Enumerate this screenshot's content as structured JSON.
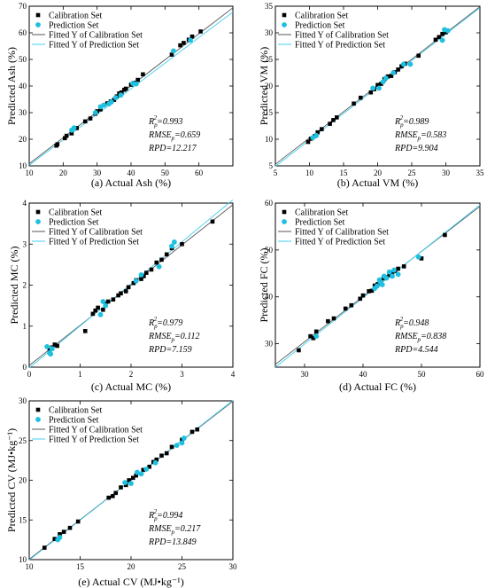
{
  "colors": {
    "calibration": "#000000",
    "prediction": "#1ec0e0",
    "fit_calibration": "#555555",
    "fit_prediction": "#40d0f0"
  },
  "legend": {
    "calibration": "Calibration Set",
    "prediction": "Prediction Set",
    "fit_calibration": "Fitted Y of Calibration Set",
    "fit_prediction": "Fitted Y of Prediction Set"
  },
  "chart_data": [
    {
      "type": "scatter",
      "caption": "(a) Actual Ash (%)",
      "ylabel": "Predicted  Ash (%)",
      "xlim": [
        10,
        70
      ],
      "ylim": [
        10,
        70
      ],
      "xticks": [
        10,
        20,
        30,
        40,
        50,
        60
      ],
      "yticks": [
        10,
        20,
        30,
        40,
        50,
        60,
        70
      ],
      "stats": {
        "r2": "0.993",
        "rmse": "0.659",
        "rpd": "RPD=12.217"
      },
      "fit_calibration": [
        [
          10,
          10.8
        ],
        [
          70,
          69.4
        ]
      ],
      "fit_prediction": [
        [
          10,
          10.2
        ],
        [
          70,
          67.8
        ]
      ],
      "calibration": [
        [
          18,
          17.6
        ],
        [
          18.3,
          18.1
        ],
        [
          20.5,
          20.4
        ],
        [
          21,
          21.3
        ],
        [
          22.5,
          22.2
        ],
        [
          24,
          24.2
        ],
        [
          26.5,
          26.7
        ],
        [
          28,
          27.8
        ],
        [
          29.5,
          29.6
        ],
        [
          30,
          30.5
        ],
        [
          31,
          31.2
        ],
        [
          32,
          32.8
        ],
        [
          33,
          33.5
        ],
        [
          34,
          34.2
        ],
        [
          35,
          34.8
        ],
        [
          35.8,
          36.1
        ],
        [
          36.5,
          37.2
        ],
        [
          37.2,
          37.6
        ],
        [
          38,
          38.6
        ],
        [
          38.5,
          39
        ],
        [
          40,
          40.5
        ],
        [
          41,
          41.2
        ],
        [
          42,
          42.3
        ],
        [
          43.5,
          44.4
        ],
        [
          52,
          51.8
        ],
        [
          54.5,
          55.3
        ],
        [
          55.5,
          56.2
        ],
        [
          57,
          57.4
        ],
        [
          58,
          58.6
        ],
        [
          60.5,
          60.5
        ]
      ],
      "prediction": [
        [
          22.5,
          23.4
        ],
        [
          23.2,
          24.3
        ],
        [
          29.5,
          30
        ],
        [
          31,
          32.2
        ],
        [
          32,
          32.8
        ],
        [
          33.5,
          33.3
        ],
        [
          34.2,
          34
        ],
        [
          35.5,
          35.6
        ],
        [
          37,
          36.6
        ],
        [
          40.5,
          41
        ],
        [
          41.5,
          40.8
        ],
        [
          52.5,
          53.2
        ],
        [
          57.5,
          57.2
        ]
      ]
    },
    {
      "type": "scatter",
      "caption": "(b) Actual VM (%)",
      "ylabel": "Predicted  VM (%)",
      "xlim": [
        5,
        35
      ],
      "ylim": [
        5,
        35
      ],
      "xticks": [
        5,
        10,
        15,
        20,
        25,
        30,
        35
      ],
      "yticks": [
        5,
        10,
        15,
        20,
        25,
        30,
        35
      ],
      "stats": {
        "r2": "0.989",
        "rmse": "0.583",
        "rpd": "RPD=9.904"
      },
      "fit_calibration": [
        [
          5,
          5.3
        ],
        [
          35,
          34.9
        ]
      ],
      "fit_prediction": [
        [
          5,
          4.9
        ],
        [
          35,
          34.7
        ]
      ],
      "calibration": [
        [
          9.8,
          9.5
        ],
        [
          10.2,
          10.1
        ],
        [
          10.8,
          10.6
        ],
        [
          11.2,
          11.3
        ],
        [
          11.8,
          11.9
        ],
        [
          13,
          12.9
        ],
        [
          13.5,
          13.6
        ],
        [
          14,
          14.1
        ],
        [
          16.5,
          16.7
        ],
        [
          17.5,
          17.8
        ],
        [
          19,
          18.8
        ],
        [
          19.5,
          19.4
        ],
        [
          20,
          20.2
        ],
        [
          20.5,
          20.4
        ],
        [
          21,
          21.3
        ],
        [
          21.5,
          21.8
        ],
        [
          22,
          21.9
        ],
        [
          22.5,
          22.6
        ],
        [
          23,
          23.1
        ],
        [
          23.5,
          23.7
        ],
        [
          24,
          24.2
        ],
        [
          26,
          25.7
        ],
        [
          28.5,
          28.7
        ],
        [
          29,
          29.2
        ],
        [
          29.5,
          29.8
        ],
        [
          30,
          30.1
        ]
      ],
      "prediction": [
        [
          10.5,
          10.3
        ],
        [
          11,
          10.7
        ],
        [
          19.3,
          19.6
        ],
        [
          20.2,
          19.6
        ],
        [
          20.8,
          20.8
        ],
        [
          21.2,
          21.5
        ],
        [
          22.3,
          22.5
        ],
        [
          23.8,
          24.1
        ],
        [
          24.8,
          24.1
        ],
        [
          29.5,
          28.6
        ],
        [
          29.8,
          30.6
        ],
        [
          30.3,
          30.4
        ]
      ]
    },
    {
      "type": "scatter",
      "caption": "(c) Actual MC (%)",
      "ylabel": "Predicted  MC (%)",
      "xlim": [
        0,
        4
      ],
      "ylim": [
        0,
        4
      ],
      "xticks": [
        0,
        1,
        2,
        3,
        4
      ],
      "yticks": [
        0,
        1,
        2,
        3,
        4
      ],
      "stats": {
        "r2": "0.979",
        "rmse": "0.112",
        "rpd": "RPD=7.159"
      },
      "fit_calibration": [
        [
          0,
          0.04
        ],
        [
          4,
          3.96
        ]
      ],
      "fit_prediction": [
        [
          0,
          -0.02
        ],
        [
          4,
          4.08
        ]
      ],
      "calibration": [
        [
          0.4,
          0.42
        ],
        [
          0.45,
          0.48
        ],
        [
          0.5,
          0.55
        ],
        [
          0.55,
          0.52
        ],
        [
          1.1,
          0.88
        ],
        [
          1.25,
          1.3
        ],
        [
          1.3,
          1.38
        ],
        [
          1.35,
          1.45
        ],
        [
          1.45,
          1.4
        ],
        [
          1.5,
          1.55
        ],
        [
          1.55,
          1.6
        ],
        [
          1.65,
          1.65
        ],
        [
          1.75,
          1.75
        ],
        [
          1.8,
          1.8
        ],
        [
          1.9,
          1.85
        ],
        [
          1.95,
          1.95
        ],
        [
          2.05,
          2.05
        ],
        [
          2.1,
          2.12
        ],
        [
          2.2,
          2.15
        ],
        [
          2.25,
          2.22
        ],
        [
          2.3,
          2.3
        ],
        [
          2.4,
          2.38
        ],
        [
          2.5,
          2.55
        ],
        [
          2.6,
          2.62
        ],
        [
          2.7,
          2.75
        ],
        [
          2.8,
          2.9
        ],
        [
          3.0,
          3.0
        ],
        [
          3.6,
          3.55
        ]
      ],
      "prediction": [
        [
          0.35,
          0.5
        ],
        [
          0.4,
          0.35
        ],
        [
          0.42,
          0.32
        ],
        [
          0.45,
          0.45
        ],
        [
          1.4,
          1.28
        ],
        [
          1.45,
          1.6
        ],
        [
          1.5,
          1.5
        ],
        [
          2.1,
          2.1
        ],
        [
          2.2,
          2.25
        ],
        [
          2.55,
          2.45
        ],
        [
          2.8,
          2.95
        ],
        [
          2.85,
          3.05
        ]
      ]
    },
    {
      "type": "scatter",
      "caption": "(d) Actual FC (%)",
      "ylabel": "Predicted  FC (%)",
      "xlim": [
        25,
        60
      ],
      "ylim": [
        25,
        60
      ],
      "xticks": [
        30,
        40,
        50,
        60
      ],
      "yticks": [
        30,
        40,
        50,
        60
      ],
      "stats": {
        "r2": "0.948",
        "rmse": "0.838",
        "rpd": "RPD=4.544"
      },
      "fit_calibration": [
        [
          25,
          25.6
        ],
        [
          60,
          59.3
        ]
      ],
      "fit_prediction": [
        [
          25,
          25.0
        ],
        [
          60,
          59.6
        ]
      ],
      "calibration": [
        [
          29,
          28.6
        ],
        [
          31,
          31.6
        ],
        [
          31.5,
          31.2
        ],
        [
          32,
          32.6
        ],
        [
          34,
          34.8
        ],
        [
          35,
          35.4
        ],
        [
          37,
          37.5
        ],
        [
          38,
          38.2
        ],
        [
          39.5,
          39.6
        ],
        [
          40,
          40.3
        ],
        [
          41,
          41.2
        ],
        [
          41.5,
          41.3
        ],
        [
          42,
          42.4
        ],
        [
          42.5,
          42.7
        ],
        [
          43,
          43.5
        ],
        [
          43.5,
          44
        ],
        [
          44,
          44.2
        ],
        [
          44.5,
          44.6
        ],
        [
          45,
          45.2
        ],
        [
          45.5,
          45.5
        ],
        [
          46,
          46
        ],
        [
          47,
          46.5
        ],
        [
          50,
          48.2
        ],
        [
          54,
          53.2
        ]
      ],
      "prediction": [
        [
          32,
          31.6
        ],
        [
          42,
          41.8
        ],
        [
          42.4,
          42.3
        ],
        [
          42.8,
          43.6
        ],
        [
          43,
          43.1
        ],
        [
          43.3,
          42.6
        ],
        [
          43.6,
          44.4
        ],
        [
          44,
          44
        ],
        [
          44.5,
          45.3
        ],
        [
          45,
          44.4
        ],
        [
          45.3,
          45.7
        ],
        [
          46,
          44.8
        ],
        [
          49.5,
          48.5
        ]
      ]
    },
    {
      "type": "scatter",
      "caption": "(e) Actual CV (MJ•kg⁻¹)",
      "ylabel": "Predicted  CV (MJ•kg⁻¹)",
      "xlim": [
        10,
        30
      ],
      "ylim": [
        10,
        30
      ],
      "xticks": [
        10,
        15,
        20,
        25,
        30
      ],
      "yticks": [
        10,
        15,
        20,
        25,
        30
      ],
      "stats": {
        "r2": "0.994",
        "rmse": "0.217",
        "rpd": "RPD=13.849"
      },
      "fit_calibration": [
        [
          10,
          10.05
        ],
        [
          30,
          29.95
        ]
      ],
      "fit_prediction": [
        [
          10,
          9.95
        ],
        [
          30,
          30.05
        ]
      ],
      "calibration": [
        [
          11.5,
          11.5
        ],
        [
          12.5,
          12.6
        ],
        [
          13,
          13.2
        ],
        [
          13.4,
          13.5
        ],
        [
          14,
          14
        ],
        [
          14.8,
          14.8
        ],
        [
          17.8,
          17.8
        ],
        [
          18.2,
          18
        ],
        [
          18.5,
          18.4
        ],
        [
          19,
          19.1
        ],
        [
          19.5,
          19.4
        ],
        [
          19.8,
          20
        ],
        [
          20.2,
          20.3
        ],
        [
          20.5,
          20.6
        ],
        [
          21.2,
          21.3
        ],
        [
          21.8,
          21.7
        ],
        [
          22.2,
          22.3
        ],
        [
          22.5,
          22.6
        ],
        [
          23,
          23.1
        ],
        [
          23.5,
          23.4
        ],
        [
          24,
          24.2
        ],
        [
          25,
          25.1
        ],
        [
          26,
          26.1
        ],
        [
          26.5,
          26.4
        ]
      ],
      "prediction": [
        [
          12.8,
          12.5
        ],
        [
          13,
          12.8
        ],
        [
          19.4,
          19.7
        ],
        [
          20,
          19.6
        ],
        [
          20.6,
          21
        ],
        [
          21,
          20.8
        ],
        [
          21.5,
          21.4
        ],
        [
          22.4,
          22.2
        ],
        [
          24.5,
          24.4
        ],
        [
          25,
          24.7
        ],
        [
          25.2,
          25.3
        ]
      ]
    }
  ]
}
